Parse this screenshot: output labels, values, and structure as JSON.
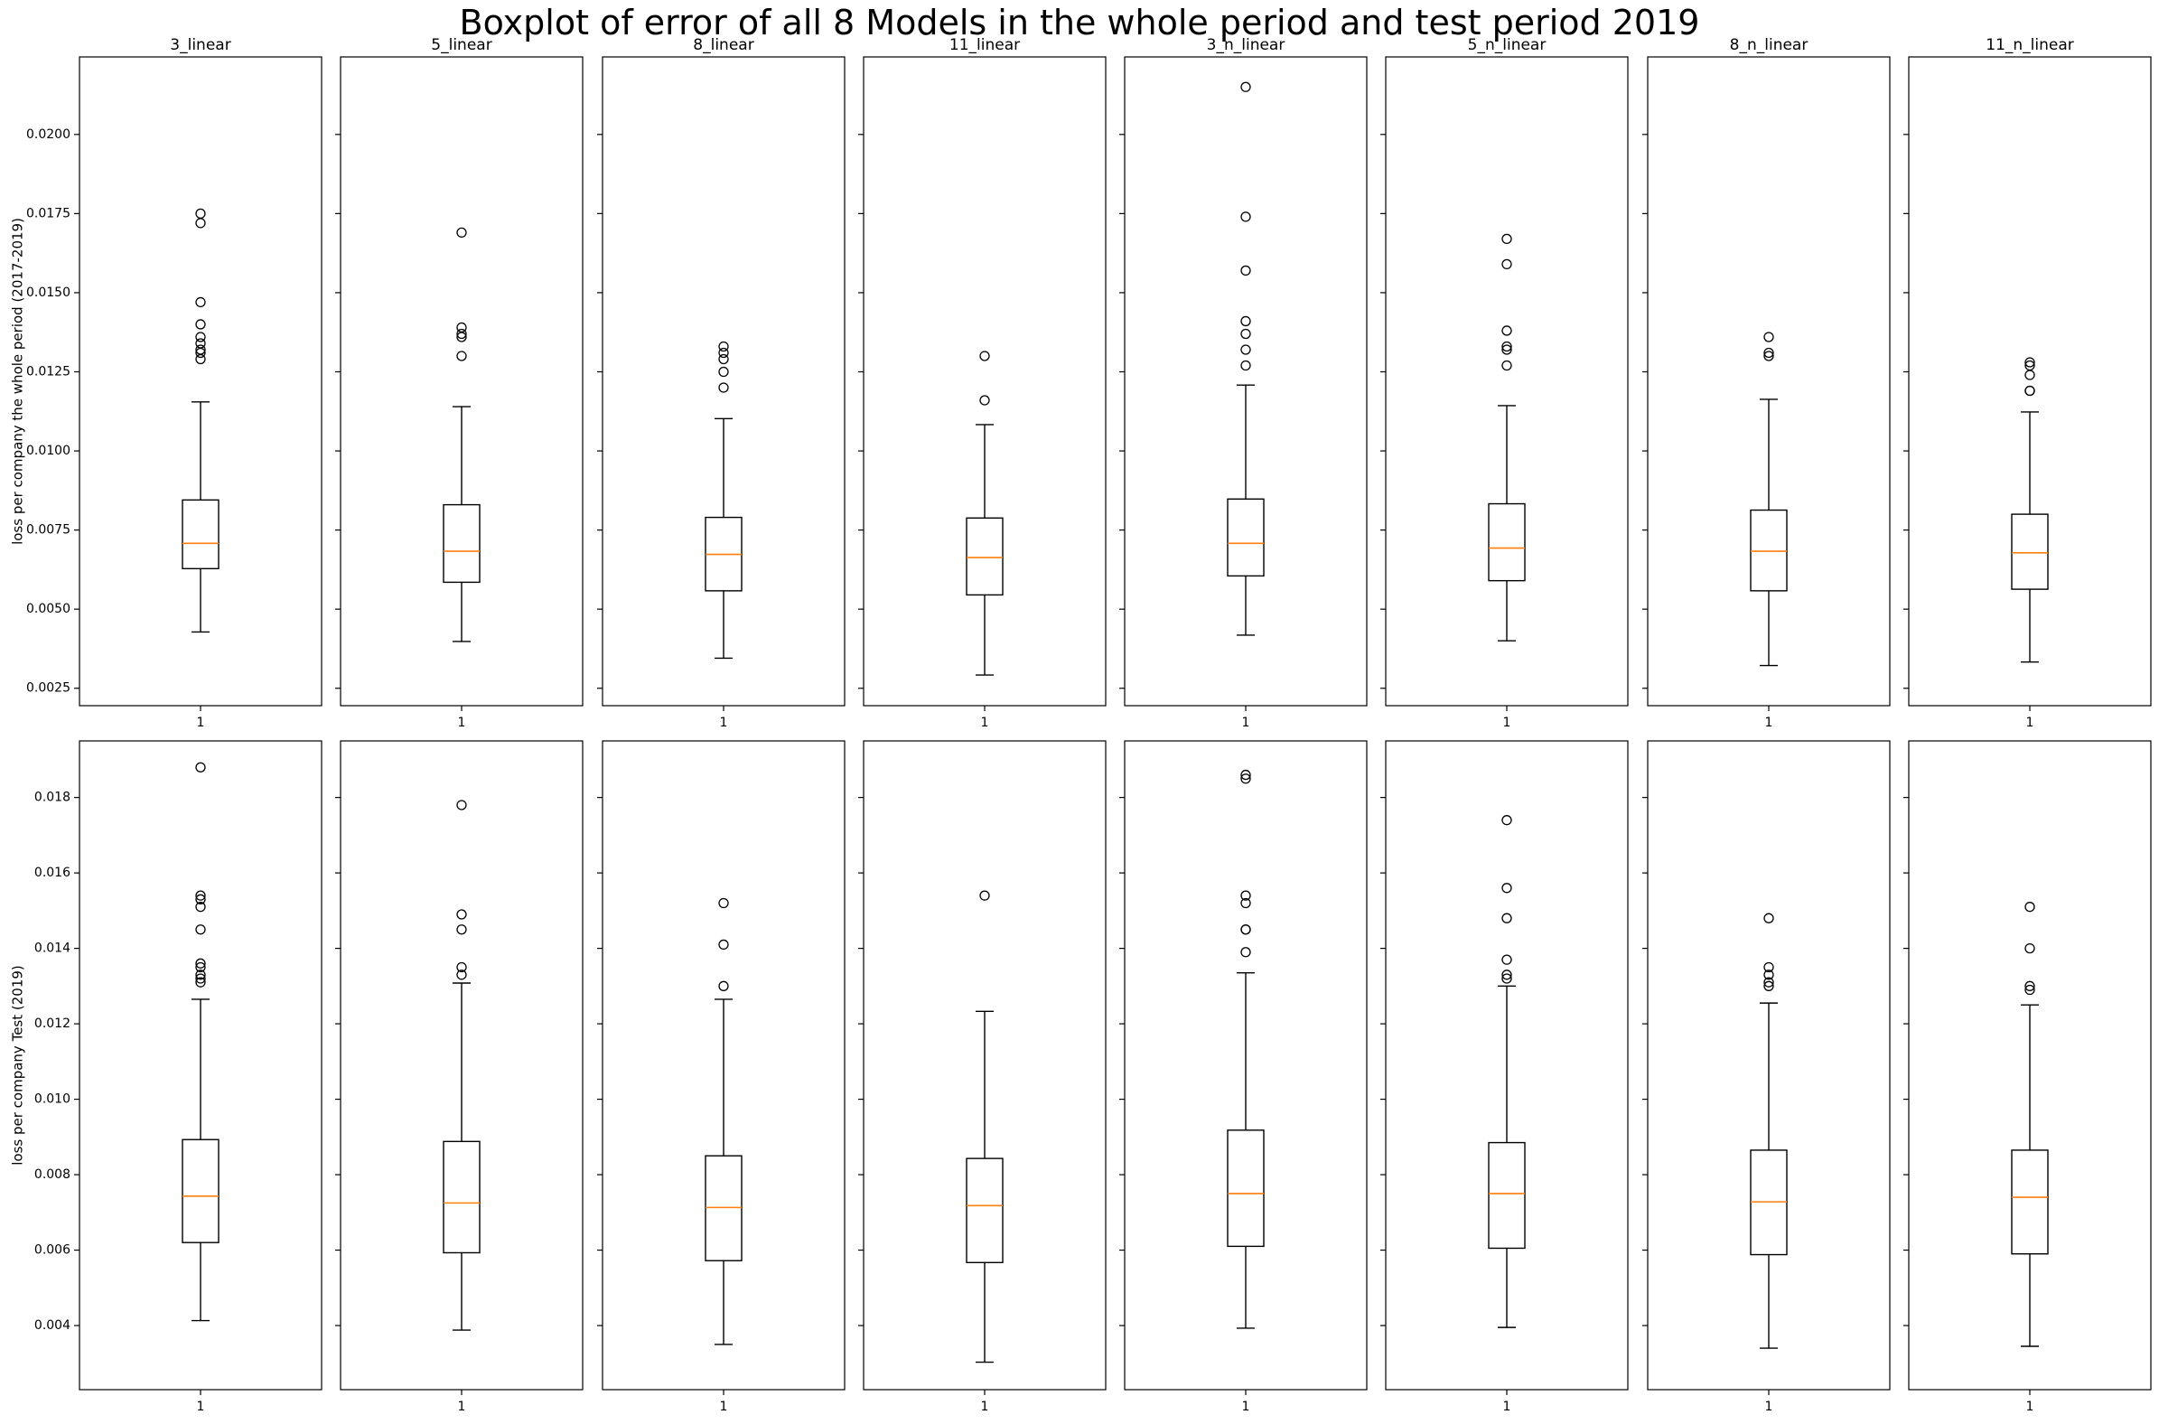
{
  "title": "Boxplot of error of all 8 Models in the whole period and test period 2019",
  "chart_data": {
    "type": "boxplot",
    "title": "Boxplot of error of all 8 Models in the whole period and test period 2019",
    "colors": {
      "box": "#000000",
      "median": "#ff7f0e",
      "flier": "#000000"
    },
    "grid": false,
    "shared_y_within_row": true,
    "rows": [
      {
        "ylabel": "loss per company the whole period (2017-2019)",
        "ylim": [
          0.00195,
          0.02245
        ],
        "yticks": [
          0.0025,
          0.005,
          0.0075,
          0.01,
          0.0125,
          0.015,
          0.0175,
          0.02
        ],
        "ytick_labels": [
          "0.0025",
          "0.0050",
          "0.0075",
          "0.0100",
          "0.0125",
          "0.0150",
          "0.0175",
          "0.0200"
        ],
        "panels": [
          {
            "name": "3_linear",
            "xtick": "1",
            "whislo": 0.00428,
            "q1": 0.00628,
            "med": 0.00708,
            "q3": 0.00845,
            "whishi": 0.01155,
            "fliers": [
              0.0175,
              0.0172,
              0.0147,
              0.014,
              0.0136,
              0.0134,
              0.0132,
              0.0131,
              0.0129
            ]
          },
          {
            "name": "5_linear",
            "xtick": "1",
            "whislo": 0.00398,
            "q1": 0.00585,
            "med": 0.00683,
            "q3": 0.0083,
            "whishi": 0.0114,
            "fliers": [
              0.0169,
              0.0139,
              0.0137,
              0.0136,
              0.013
            ]
          },
          {
            "name": "8_linear",
            "xtick": "1",
            "whislo": 0.00345,
            "q1": 0.00558,
            "med": 0.00673,
            "q3": 0.0079,
            "whishi": 0.01102,
            "fliers": [
              0.0133,
              0.0131,
              0.0129,
              0.0125,
              0.012
            ]
          },
          {
            "name": "11_linear",
            "xtick": "1",
            "whislo": 0.00292,
            "q1": 0.00545,
            "med": 0.00663,
            "q3": 0.00788,
            "whishi": 0.01083,
            "fliers": [
              0.013,
              0.0116
            ]
          },
          {
            "name": "3_n_linear",
            "xtick": "1",
            "whislo": 0.00418,
            "q1": 0.00605,
            "med": 0.00708,
            "q3": 0.00848,
            "whishi": 0.01208,
            "fliers": [
              0.0215,
              0.0174,
              0.0157,
              0.0141,
              0.0137,
              0.0132,
              0.0127
            ]
          },
          {
            "name": "5_n_linear",
            "xtick": "1",
            "whislo": 0.004,
            "q1": 0.0059,
            "med": 0.00693,
            "q3": 0.00833,
            "whishi": 0.01143,
            "fliers": [
              0.0167,
              0.0159,
              0.0138,
              0.0133,
              0.0132,
              0.0127
            ]
          },
          {
            "name": "8_n_linear",
            "xtick": "1",
            "whislo": 0.00322,
            "q1": 0.00558,
            "med": 0.00683,
            "q3": 0.00813,
            "whishi": 0.01163,
            "fliers": [
              0.0136,
              0.0131,
              0.013
            ]
          },
          {
            "name": "11_n_linear",
            "xtick": "1",
            "whislo": 0.00333,
            "q1": 0.00563,
            "med": 0.00678,
            "q3": 0.008,
            "whishi": 0.01123,
            "fliers": [
              0.0128,
              0.0127,
              0.0124,
              0.0119,
              0.0119
            ]
          }
        ]
      },
      {
        "ylabel": "loss per company Test (2019)",
        "ylim": [
          0.0023,
          0.0195
        ],
        "yticks": [
          0.004,
          0.006,
          0.008,
          0.01,
          0.012,
          0.014,
          0.016,
          0.018
        ],
        "ytick_labels": [
          "0.004",
          "0.006",
          "0.008",
          "0.010",
          "0.012",
          "0.014",
          "0.016",
          "0.018"
        ],
        "panels": [
          {
            "name": "3_linear",
            "xtick": "1",
            "whislo": 0.00413,
            "q1": 0.0062,
            "med": 0.00743,
            "q3": 0.00893,
            "whishi": 0.01265,
            "fliers": [
              0.0188,
              0.0154,
              0.0153,
              0.0151,
              0.0145,
              0.0136,
              0.0135,
              0.0133,
              0.0132,
              0.0131
            ]
          },
          {
            "name": "5_linear",
            "xtick": "1",
            "whislo": 0.00388,
            "q1": 0.00593,
            "med": 0.00725,
            "q3": 0.00888,
            "whishi": 0.01308,
            "fliers": [
              0.0178,
              0.0149,
              0.0145,
              0.0135,
              0.0133
            ]
          },
          {
            "name": "8_linear",
            "xtick": "1",
            "whislo": 0.0035,
            "q1": 0.00572,
            "med": 0.00713,
            "q3": 0.0085,
            "whishi": 0.01265,
            "fliers": [
              0.0152,
              0.0141,
              0.013
            ]
          },
          {
            "name": "11_linear",
            "xtick": "1",
            "whislo": 0.00303,
            "q1": 0.00567,
            "med": 0.00718,
            "q3": 0.00843,
            "whishi": 0.01233,
            "fliers": [
              0.0154
            ]
          },
          {
            "name": "3_n_linear",
            "xtick": "1",
            "whislo": 0.00393,
            "q1": 0.0061,
            "med": 0.0075,
            "q3": 0.00918,
            "whishi": 0.01335,
            "fliers": [
              0.0186,
              0.0185,
              0.0154,
              0.0152,
              0.0145,
              0.0145,
              0.0139
            ]
          },
          {
            "name": "5_n_linear",
            "xtick": "1",
            "whislo": 0.00395,
            "q1": 0.00605,
            "med": 0.0075,
            "q3": 0.00885,
            "whishi": 0.013,
            "fliers": [
              0.0174,
              0.0156,
              0.0148,
              0.0137,
              0.0133,
              0.0132
            ]
          },
          {
            "name": "8_n_linear",
            "xtick": "1",
            "whislo": 0.0034,
            "q1": 0.00588,
            "med": 0.00728,
            "q3": 0.00865,
            "whishi": 0.01255,
            "fliers": [
              0.0148,
              0.0135,
              0.0133,
              0.0131,
              0.013
            ]
          },
          {
            "name": "11_n_linear",
            "xtick": "1",
            "whislo": 0.00345,
            "q1": 0.0059,
            "med": 0.0074,
            "q3": 0.00865,
            "whishi": 0.0125,
            "fliers": [
              0.0151,
              0.014,
              0.013,
              0.0129
            ]
          }
        ]
      }
    ]
  }
}
